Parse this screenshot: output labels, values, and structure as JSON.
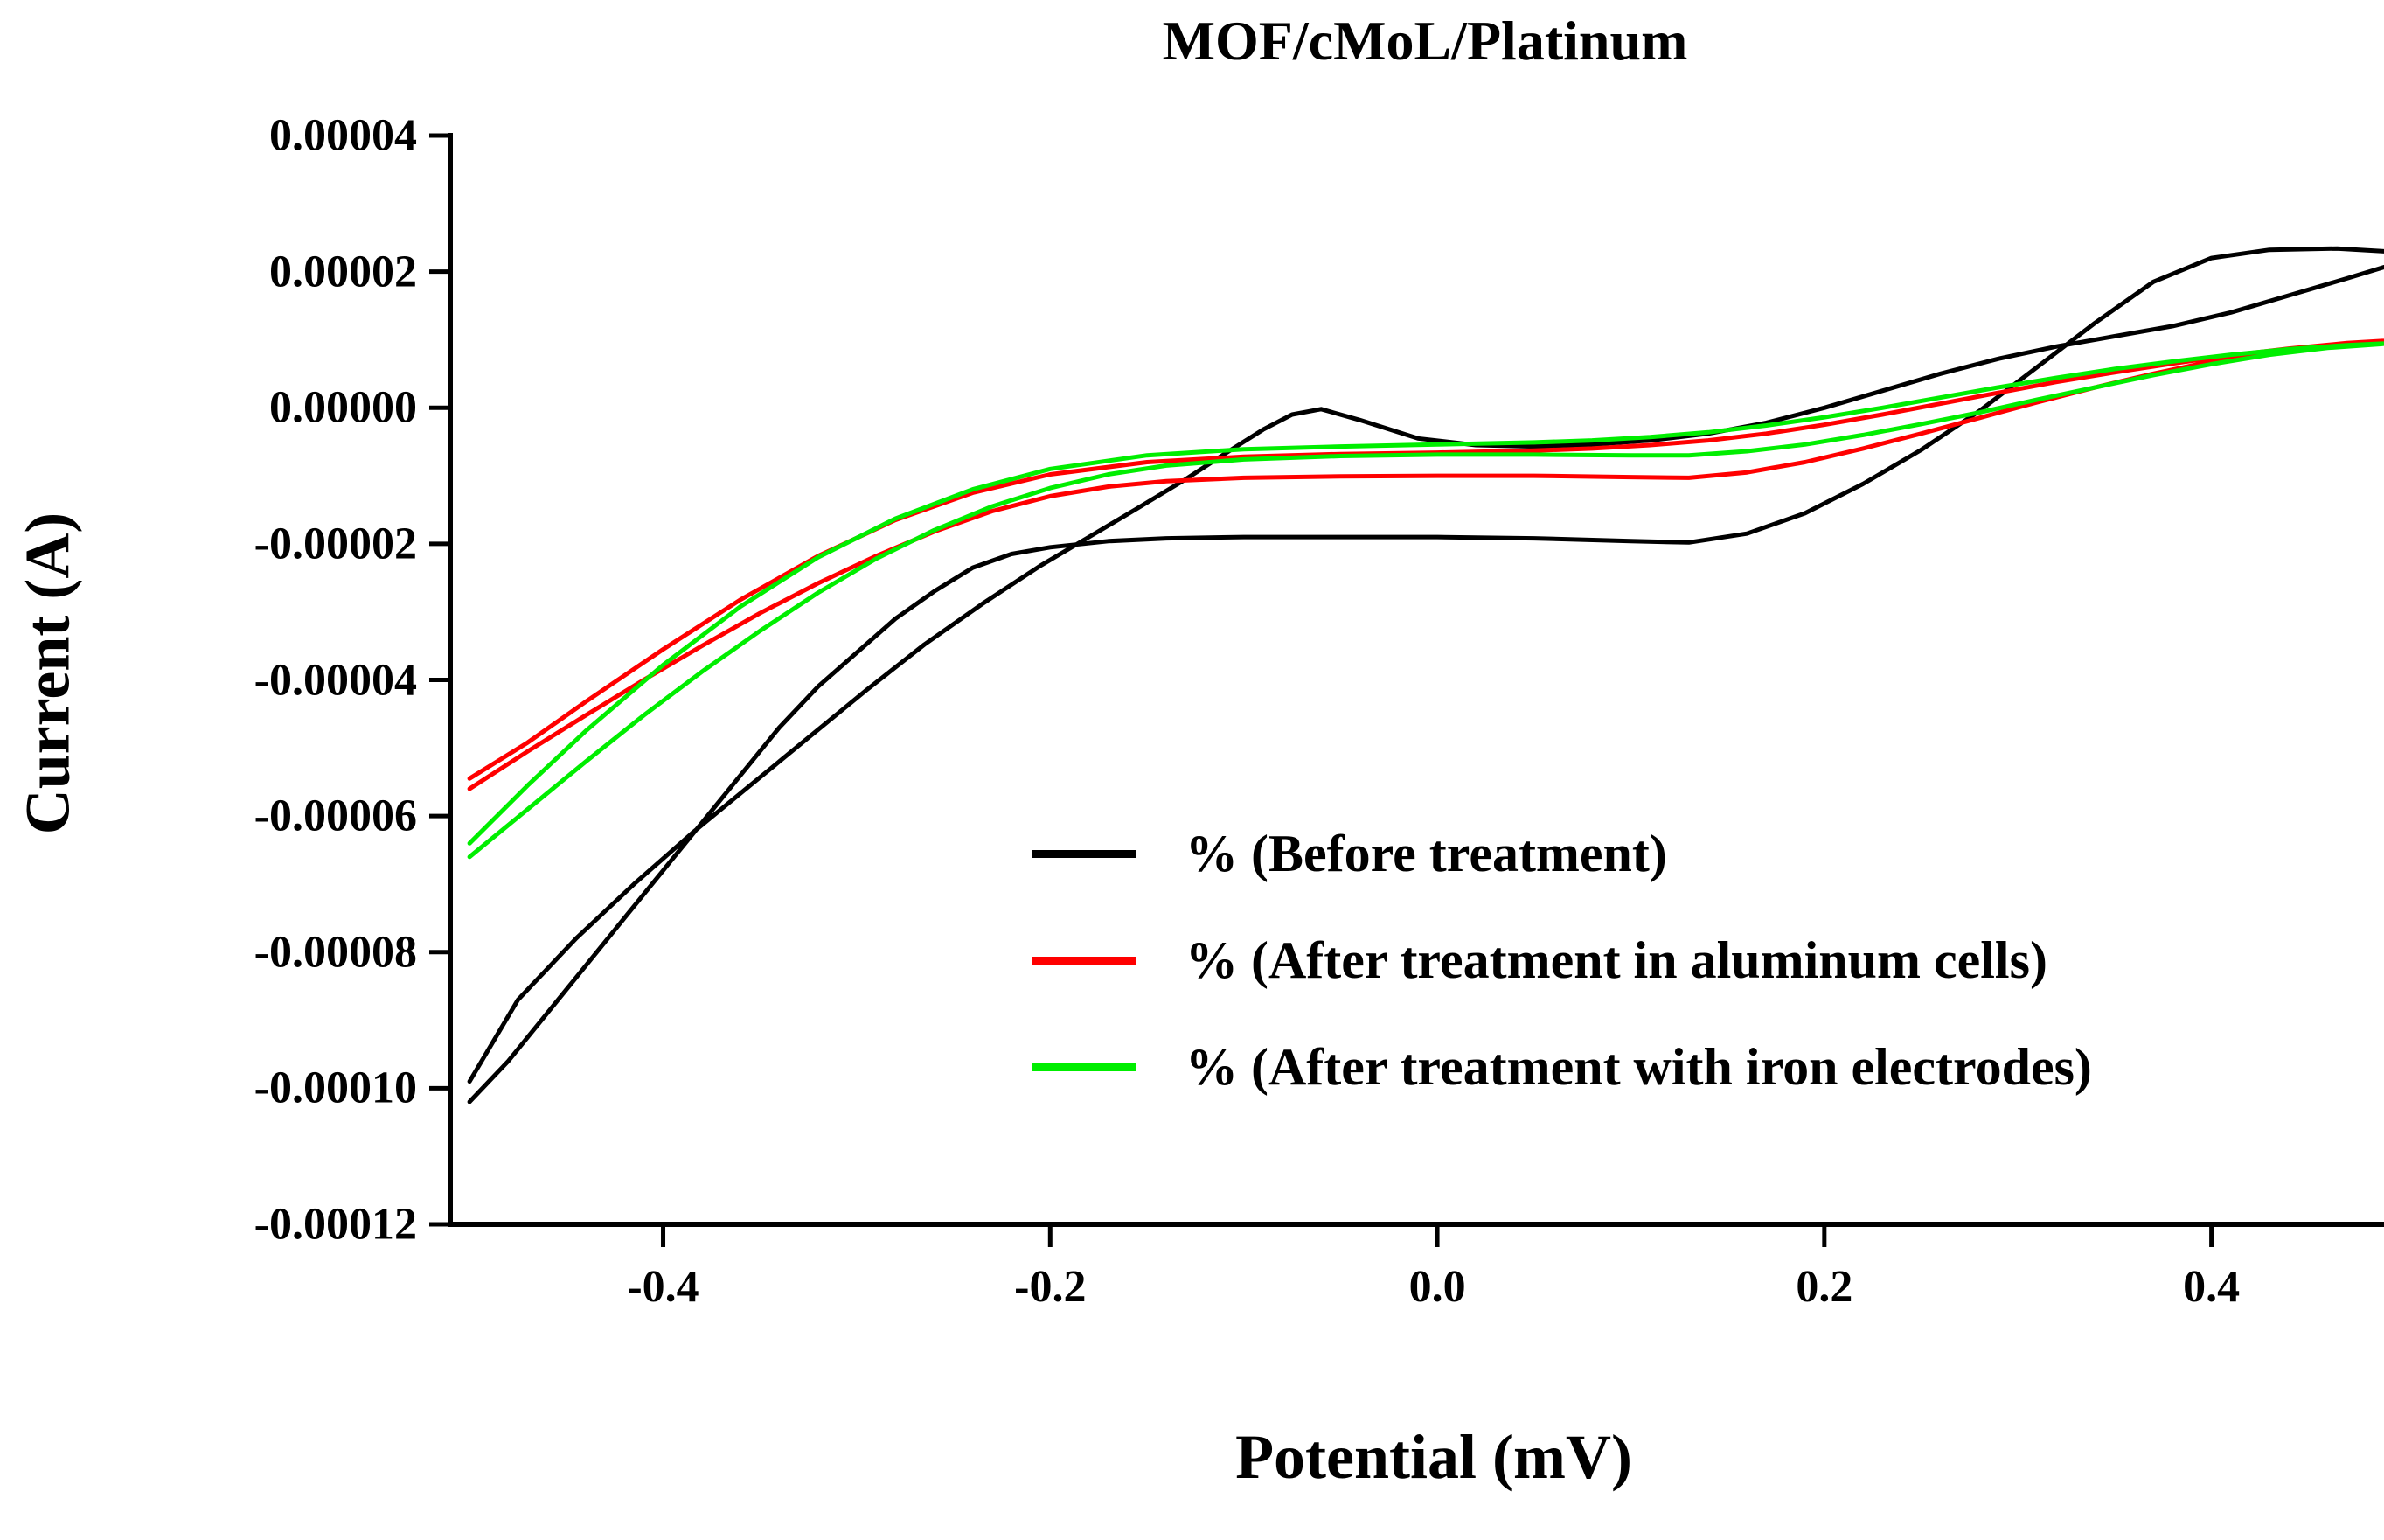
{
  "figure": {
    "background": "#ffffff"
  },
  "chart_data": {
    "type": "line",
    "subtype": "cyclic-voltammogram",
    "title": "MOF/cMoL/Platinum",
    "xlabel": "Potential (mV)",
    "ylabel": "Current (A)",
    "xlim": [
      -0.51,
      0.5
    ],
    "ylim": [
      -0.00012,
      4e-05
    ],
    "grid": false,
    "axis_color": "#000000",
    "legend_position": "inside-lower-right",
    "x_ticks": [
      {
        "value": -0.4,
        "label": "-0.4"
      },
      {
        "value": -0.2,
        "label": "-0.2"
      },
      {
        "value": 0.0,
        "label": "0.0"
      },
      {
        "value": 0.2,
        "label": "0.2"
      },
      {
        "value": 0.4,
        "label": "0.4"
      }
    ],
    "y_ticks": [
      {
        "value": 4e-05,
        "label": "0.00004"
      },
      {
        "value": 2e-05,
        "label": "0.00002"
      },
      {
        "value": 0.0,
        "label": "0.00000"
      },
      {
        "value": -2e-05,
        "label": "-0.00002"
      },
      {
        "value": -4e-05,
        "label": "-0.00004"
      },
      {
        "value": -6e-05,
        "label": "-0.00006"
      },
      {
        "value": -8e-05,
        "label": "-0.00008"
      },
      {
        "value": -0.0001,
        "label": "-0.00010"
      },
      {
        "value": -0.00012,
        "label": "-0.00012"
      }
    ],
    "series": [
      {
        "name": "before_treatment",
        "legend_label": "% (Before treatment)",
        "color": "#000000",
        "points": [
          [
            -0.5,
            -0.000102
          ],
          [
            -0.48,
            -9.6e-05
          ],
          [
            -0.46,
            -8.9e-05
          ],
          [
            -0.44,
            -8.2e-05
          ],
          [
            -0.42,
            -7.5e-05
          ],
          [
            -0.4,
            -6.8e-05
          ],
          [
            -0.38,
            -6.1e-05
          ],
          [
            -0.36,
            -5.4e-05
          ],
          [
            -0.34,
            -4.7e-05
          ],
          [
            -0.32,
            -4.1e-05
          ],
          [
            -0.3,
            -3.6e-05
          ],
          [
            -0.28,
            -3.1e-05
          ],
          [
            -0.26,
            -2.7e-05
          ],
          [
            -0.24,
            -2.35e-05
          ],
          [
            -0.22,
            -2.15e-05
          ],
          [
            -0.2,
            -2.05e-05
          ],
          [
            -0.17,
            -1.96e-05
          ],
          [
            -0.14,
            -1.92e-05
          ],
          [
            -0.1,
            -1.9e-05
          ],
          [
            -0.05,
            -1.9e-05
          ],
          [
            0.0,
            -1.9e-05
          ],
          [
            0.05,
            -1.92e-05
          ],
          [
            0.1,
            -1.96e-05
          ],
          [
            0.13,
            -1.98e-05
          ],
          [
            0.16,
            -1.85e-05
          ],
          [
            0.19,
            -1.55e-05
          ],
          [
            0.22,
            -1.12e-05
          ],
          [
            0.25,
            -6.2e-06
          ],
          [
            0.28,
            -5e-07
          ],
          [
            0.31,
            6e-06
          ],
          [
            0.34,
            1.25e-05
          ],
          [
            0.37,
            1.85e-05
          ],
          [
            0.4,
            2.2e-05
          ],
          [
            0.43,
            2.32e-05
          ],
          [
            0.465,
            2.34e-05
          ],
          [
            0.5,
            2.28e-05
          ],
          [
            0.5,
            2.16e-05
          ],
          [
            0.47,
            1.9e-05
          ],
          [
            0.44,
            1.65e-05
          ],
          [
            0.41,
            1.4e-05
          ],
          [
            0.38,
            1.2e-05
          ],
          [
            0.35,
            1.05e-05
          ],
          [
            0.32,
            9e-06
          ],
          [
            0.29,
            7.2e-06
          ],
          [
            0.26,
            5e-06
          ],
          [
            0.23,
            2.5e-06
          ],
          [
            0.2,
            0.0
          ],
          [
            0.17,
            -2.2e-06
          ],
          [
            0.14,
            -3.8e-06
          ],
          [
            0.11,
            -4.8e-06
          ],
          [
            0.08,
            -5.4e-06
          ],
          [
            0.05,
            -5.7e-06
          ],
          [
            0.02,
            -5.5e-06
          ],
          [
            -0.01,
            -4.5e-06
          ],
          [
            -0.04,
            -1.8e-06
          ],
          [
            -0.06,
            -2e-07
          ],
          [
            -0.075,
            -1e-06
          ],
          [
            -0.09,
            -3.2e-06
          ],
          [
            -0.11,
            -6.8e-06
          ],
          [
            -0.13,
            -1.05e-05
          ],
          [
            -0.155,
            -1.48e-05
          ],
          [
            -0.18,
            -1.9e-05
          ],
          [
            -0.205,
            -2.32e-05
          ],
          [
            -0.235,
            -2.88e-05
          ],
          [
            -0.265,
            -3.48e-05
          ],
          [
            -0.295,
            -4.15e-05
          ],
          [
            -0.325,
            -4.85e-05
          ],
          [
            -0.355,
            -5.55e-05
          ],
          [
            -0.385,
            -6.25e-05
          ],
          [
            -0.415,
            -7e-05
          ],
          [
            -0.445,
            -7.8e-05
          ],
          [
            -0.475,
            -8.7e-05
          ],
          [
            -0.5,
            -9.9e-05
          ]
        ]
      },
      {
        "name": "after_treatment_aluminum_cells",
        "legend_label": "% (After treatment in aluminum cells)",
        "color": "#ff0000",
        "points": [
          [
            -0.5,
            -5.6e-05
          ],
          [
            -0.47,
            -5.05e-05
          ],
          [
            -0.44,
            -4.52e-05
          ],
          [
            -0.41,
            -4e-05
          ],
          [
            -0.38,
            -3.5e-05
          ],
          [
            -0.35,
            -3.02e-05
          ],
          [
            -0.32,
            -2.58e-05
          ],
          [
            -0.29,
            -2.18e-05
          ],
          [
            -0.26,
            -1.82e-05
          ],
          [
            -0.23,
            -1.52e-05
          ],
          [
            -0.2,
            -1.3e-05
          ],
          [
            -0.17,
            -1.16e-05
          ],
          [
            -0.14,
            -1.08e-05
          ],
          [
            -0.1,
            -1.03e-05
          ],
          [
            -0.05,
            -1.01e-05
          ],
          [
            0.0,
            -1e-05
          ],
          [
            0.05,
            -1e-05
          ],
          [
            0.1,
            -1.02e-05
          ],
          [
            0.13,
            -1.03e-05
          ],
          [
            0.16,
            -9.5e-06
          ],
          [
            0.19,
            -8e-06
          ],
          [
            0.22,
            -6e-06
          ],
          [
            0.25,
            -3.8e-06
          ],
          [
            0.28,
            -1.5e-06
          ],
          [
            0.31,
            8e-07
          ],
          [
            0.34,
            3e-06
          ],
          [
            0.37,
            5e-06
          ],
          [
            0.4,
            6.8e-06
          ],
          [
            0.43,
            8.2e-06
          ],
          [
            0.46,
            9.2e-06
          ],
          [
            0.5,
            1e-05
          ],
          [
            0.47,
            9.5e-06
          ],
          [
            0.44,
            8.7e-06
          ],
          [
            0.41,
            7.7e-06
          ],
          [
            0.38,
            6.5e-06
          ],
          [
            0.35,
            5.2e-06
          ],
          [
            0.32,
            3.8e-06
          ],
          [
            0.29,
            2.2e-06
          ],
          [
            0.26,
            6e-07
          ],
          [
            0.23,
            -1e-06
          ],
          [
            0.2,
            -2.5e-06
          ],
          [
            0.17,
            -3.8e-06
          ],
          [
            0.14,
            -4.8e-06
          ],
          [
            0.11,
            -5.5e-06
          ],
          [
            0.08,
            -6e-06
          ],
          [
            0.05,
            -6.3e-06
          ],
          [
            0.0,
            -6.6e-06
          ],
          [
            -0.05,
            -6.8e-06
          ],
          [
            -0.1,
            -7.2e-06
          ],
          [
            -0.15,
            -8e-06
          ],
          [
            -0.2,
            -9.8e-06
          ],
          [
            -0.24,
            -1.25e-05
          ],
          [
            -0.28,
            -1.65e-05
          ],
          [
            -0.32,
            -2.18e-05
          ],
          [
            -0.36,
            -2.82e-05
          ],
          [
            -0.4,
            -3.55e-05
          ],
          [
            -0.44,
            -4.32e-05
          ],
          [
            -0.47,
            -4.92e-05
          ],
          [
            -0.5,
            -5.45e-05
          ]
        ]
      },
      {
        "name": "after_treatment_iron_electrodes",
        "legend_label": "% (After treatment with iron electrodes)",
        "color": "#00ee00",
        "points": [
          [
            -0.5,
            -6.6e-05
          ],
          [
            -0.47,
            -5.9e-05
          ],
          [
            -0.44,
            -5.2e-05
          ],
          [
            -0.41,
            -4.52e-05
          ],
          [
            -0.38,
            -3.88e-05
          ],
          [
            -0.35,
            -3.28e-05
          ],
          [
            -0.32,
            -2.72e-05
          ],
          [
            -0.29,
            -2.22e-05
          ],
          [
            -0.26,
            -1.8e-05
          ],
          [
            -0.23,
            -1.45e-05
          ],
          [
            -0.2,
            -1.18e-05
          ],
          [
            -0.17,
            -9.8e-06
          ],
          [
            -0.14,
            -8.5e-06
          ],
          [
            -0.1,
            -7.6e-06
          ],
          [
            -0.05,
            -7.1e-06
          ],
          [
            0.0,
            -6.9e-06
          ],
          [
            0.05,
            -6.9e-06
          ],
          [
            0.1,
            -7e-06
          ],
          [
            0.13,
            -7e-06
          ],
          [
            0.16,
            -6.4e-06
          ],
          [
            0.19,
            -5.4e-06
          ],
          [
            0.22,
            -4e-06
          ],
          [
            0.25,
            -2.4e-06
          ],
          [
            0.28,
            -7e-07
          ],
          [
            0.31,
            1.2e-06
          ],
          [
            0.34,
            3e-06
          ],
          [
            0.37,
            4.8e-06
          ],
          [
            0.4,
            6.4e-06
          ],
          [
            0.43,
            7.8e-06
          ],
          [
            0.46,
            8.8e-06
          ],
          [
            0.5,
            9.6e-06
          ],
          [
            0.47,
            9.2e-06
          ],
          [
            0.44,
            8.6e-06
          ],
          [
            0.41,
            7.8e-06
          ],
          [
            0.38,
            6.8e-06
          ],
          [
            0.35,
            5.7e-06
          ],
          [
            0.32,
            4.4e-06
          ],
          [
            0.29,
            3e-06
          ],
          [
            0.26,
            1.5e-06
          ],
          [
            0.23,
            0.0
          ],
          [
            0.2,
            -1.4e-06
          ],
          [
            0.17,
            -2.6e-06
          ],
          [
            0.14,
            -3.6e-06
          ],
          [
            0.11,
            -4.3e-06
          ],
          [
            0.08,
            -4.8e-06
          ],
          [
            0.05,
            -5.1e-06
          ],
          [
            0.0,
            -5.4e-06
          ],
          [
            -0.05,
            -5.7e-06
          ],
          [
            -0.1,
            -6.1e-06
          ],
          [
            -0.15,
            -7e-06
          ],
          [
            -0.2,
            -9e-06
          ],
          [
            -0.24,
            -1.2e-05
          ],
          [
            -0.28,
            -1.63e-05
          ],
          [
            -0.32,
            -2.2e-05
          ],
          [
            -0.36,
            -2.92e-05
          ],
          [
            -0.4,
            -3.78e-05
          ],
          [
            -0.44,
            -4.75e-05
          ],
          [
            -0.47,
            -5.55e-05
          ],
          [
            -0.5,
            -6.4e-05
          ]
        ]
      }
    ]
  }
}
